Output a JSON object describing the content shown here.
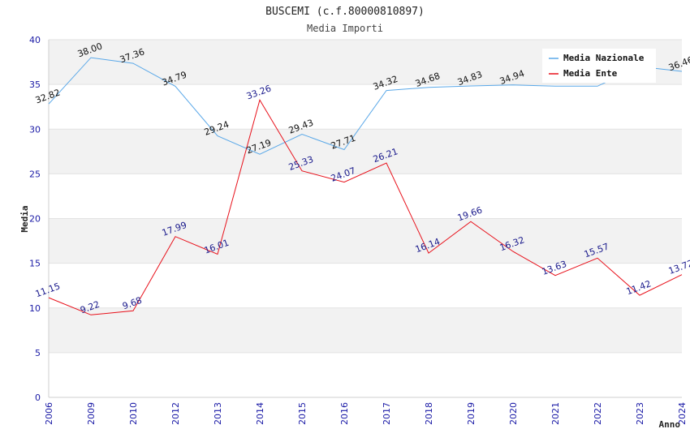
{
  "chart_data": {
    "type": "line",
    "title": "BUSCEMI (c.f.80000810897)",
    "subtitle": "Media Importi",
    "xlabel": "Anno",
    "ylabel": "Media",
    "ylim": [
      0,
      40
    ],
    "yticks": [
      0,
      5,
      10,
      15,
      20,
      25,
      30,
      35,
      40
    ],
    "grid": true,
    "legend_position": "top-right",
    "categories": [
      "2006",
      "2009",
      "2010",
      "2012",
      "2013",
      "2014",
      "2015",
      "2016",
      "2017",
      "2018",
      "2019",
      "2020",
      "2021",
      "2022",
      "2023",
      "2024"
    ],
    "series": [
      {
        "name": "Media Nazionale",
        "color": "#5aa8e8",
        "label_color": "#111111",
        "values": [
          32.82,
          38.0,
          37.36,
          34.79,
          29.24,
          27.19,
          29.43,
          27.71,
          34.32,
          34.68,
          34.83,
          34.94,
          34.8,
          34.8,
          37.0,
          36.46
        ],
        "labels": [
          "32.82",
          "38.00",
          "37.36",
          "34.79",
          "29.24",
          "27.19",
          "29.43",
          "27.71",
          "34.32",
          "34.68",
          "34.83",
          "34.94",
          "",
          "",
          "",
          "36.46"
        ]
      },
      {
        "name": "Media Ente",
        "color": "#e8101a",
        "label_color": "#1a1a8c",
        "values": [
          11.15,
          9.22,
          9.68,
          17.99,
          16.01,
          33.26,
          25.33,
          24.07,
          26.21,
          16.14,
          19.66,
          16.32,
          13.63,
          15.57,
          11.42,
          13.72
        ],
        "labels": [
          "11.15",
          "9.22",
          "9.68",
          "17.99",
          "16.01",
          "33.26",
          "25.33",
          "24.07",
          "26.21",
          "16.14",
          "19.66",
          "16.32",
          "13.63",
          "15.57",
          "11.42",
          "13.72"
        ]
      }
    ]
  }
}
